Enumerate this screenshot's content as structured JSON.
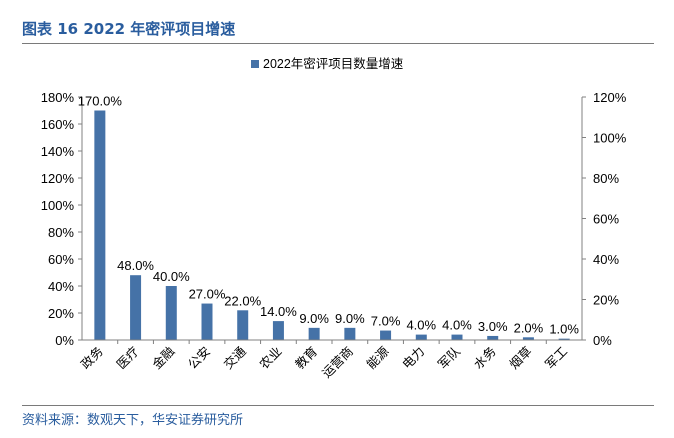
{
  "figure": {
    "title": "图表 16 2022 年密评项目增速",
    "source": "资料来源：数观天下，华安证券研究所"
  },
  "chart_data": {
    "type": "bar",
    "title": "",
    "xlabel": "",
    "ylabel": "",
    "categories": [
      "政务",
      "医疗",
      "金融",
      "公安",
      "交通",
      "农业",
      "教育",
      "运营商",
      "能源",
      "电力",
      "军队",
      "水务",
      "烟草",
      "军工"
    ],
    "series": [
      {
        "name": "2022年密评项目数量增速",
        "values": [
          170.0,
          48.0,
          40.0,
          27.0,
          22.0,
          14.0,
          9.0,
          9.0,
          7.0,
          4.0,
          4.0,
          3.0,
          2.0,
          1.0
        ],
        "labels": [
          "170.0%",
          "48.0%",
          "40.0%",
          "27.0%",
          "22.0%",
          "14.0%",
          "9.0%",
          "9.0%",
          "7.0%",
          "4.0%",
          "4.0%",
          "3.0%",
          "2.0%",
          "1.0%"
        ]
      }
    ],
    "ylim": [
      0,
      180
    ],
    "yticks": [
      "0%",
      "20%",
      "40%",
      "60%",
      "80%",
      "100%",
      "120%",
      "140%",
      "160%",
      "180%"
    ],
    "y2lim": [
      0,
      120
    ],
    "y2ticks": [
      "0%",
      "20%",
      "40%",
      "60%",
      "80%",
      "100%",
      "120%"
    ],
    "grid": false,
    "legend_position": "top-center",
    "colors": {
      "bar": "#4572a7",
      "axis": "#808080",
      "title": "#2a5d9e"
    }
  }
}
